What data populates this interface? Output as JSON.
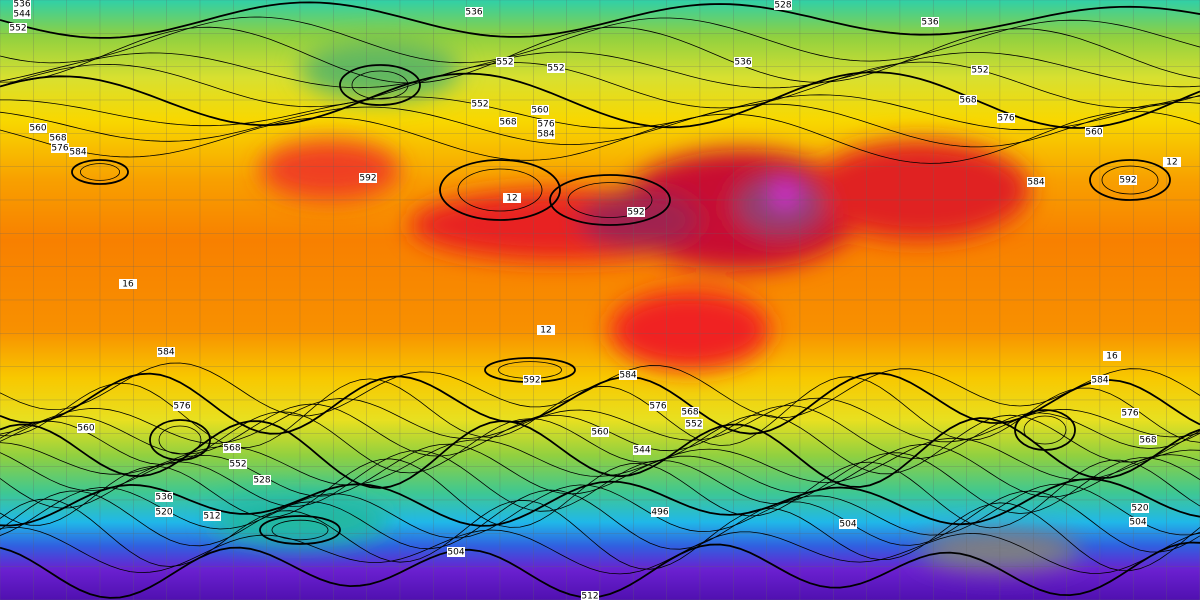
{
  "contour_labels": [
    "536",
    "544",
    "552",
    "536",
    "528",
    "536",
    "552",
    "552",
    "536",
    "552",
    "568",
    "576",
    "560",
    "576",
    "584",
    "568",
    "552",
    "560",
    "560",
    "568",
    "576",
    "584",
    "592",
    "592",
    "584",
    "592",
    "584",
    "592",
    "584",
    "576",
    "576",
    "568",
    "552",
    "560",
    "568",
    "552",
    "560",
    "544",
    "576",
    "568",
    "584",
    "536",
    "528",
    "520",
    "512",
    "504",
    "504",
    "496",
    "512",
    "520",
    "504",
    "12",
    "16",
    "12",
    "16",
    "12"
  ]
}
